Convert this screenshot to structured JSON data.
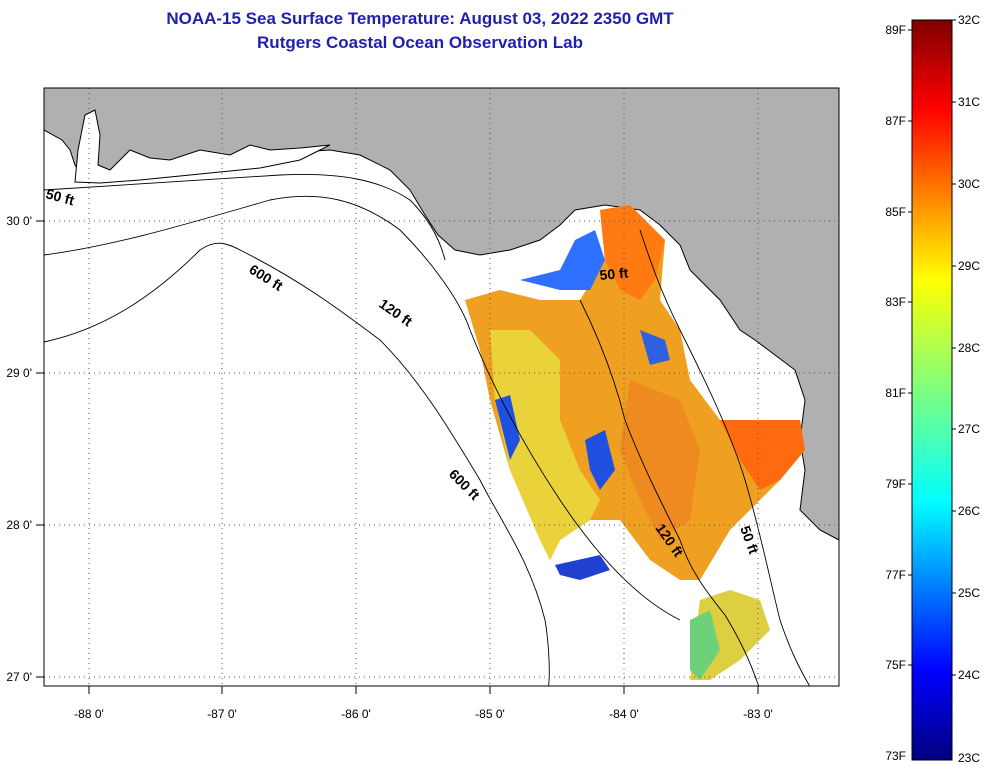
{
  "title": "NOAA-15 Sea Surface Temperature:  August 03, 2022 2350 GMT",
  "subtitle": "Rutgers Coastal Ocean Observation Lab",
  "map": {
    "x_ticks": [
      "-88 0'",
      "-87 0'",
      "-86 0'",
      "-85 0'",
      "-84 0'",
      "-83 0'"
    ],
    "y_ticks": [
      "30 0'",
      "29 0'",
      "28 0'",
      "27 0'"
    ],
    "depth_labels": [
      "50 ft",
      "600 ft",
      "120 ft",
      "50 ft",
      "600 ft",
      "120 ft",
      "50 ft"
    ],
    "colors": {
      "land": "#b0b0b0",
      "ocean": "#ffffff",
      "grid": "#555555"
    }
  },
  "colorbar": {
    "fahrenheit": [
      "89F",
      "87F",
      "85F",
      "83F",
      "81F",
      "79F",
      "77F",
      "75F",
      "73F"
    ],
    "celsius": [
      "32C",
      "31C",
      "30C",
      "29C",
      "28C",
      "27C",
      "26C",
      "25C",
      "24C",
      "23C"
    ],
    "range_c": [
      23,
      32
    ]
  }
}
